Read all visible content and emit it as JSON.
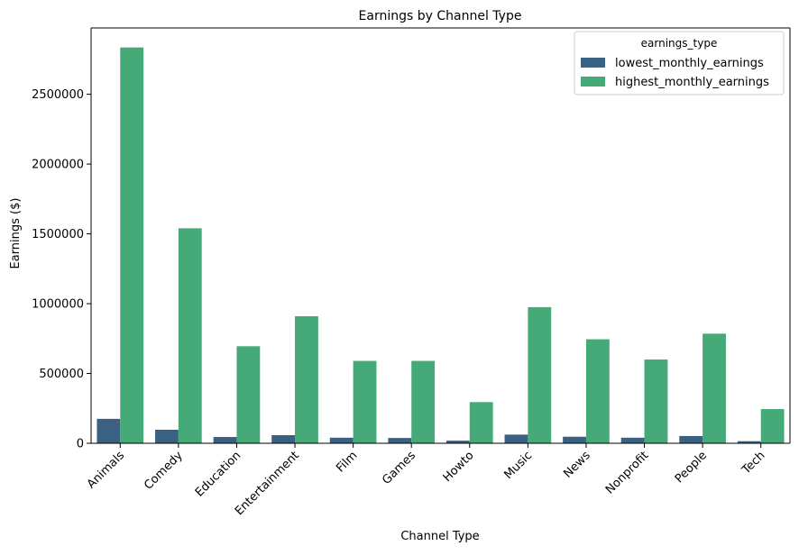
{
  "chart_data": {
    "type": "bar",
    "title": "Earnings by Channel Type",
    "xlabel": "Channel Type",
    "ylabel": "Earnings ($)",
    "categories": [
      "Animals",
      "Comedy",
      "Education",
      "Entertainment",
      "Film",
      "Games",
      "Howto",
      "Music",
      "News",
      "Nonprofit",
      "People",
      "Tech"
    ],
    "ylim": [
      0,
      2975000
    ],
    "yticks": [
      0,
      500000,
      1000000,
      1500000,
      2000000,
      2500000
    ],
    "ytick_labels": [
      "0",
      "500000",
      "1000000",
      "1500000",
      "2000000",
      "2500000"
    ],
    "legend": {
      "title": "earnings_type",
      "placement": "top-right"
    },
    "grid": false,
    "series": [
      {
        "name": "lowest_monthly_earnings",
        "color": "#3b6182",
        "values": [
          175000,
          97000,
          45000,
          58000,
          40000,
          38000,
          19000,
          62000,
          47000,
          40000,
          52000,
          15000
        ]
      },
      {
        "name": "highest_monthly_earnings",
        "color": "#45aa77",
        "values": [
          2835000,
          1540000,
          695000,
          910000,
          590000,
          590000,
          295000,
          975000,
          745000,
          600000,
          785000,
          245000
        ]
      }
    ]
  }
}
